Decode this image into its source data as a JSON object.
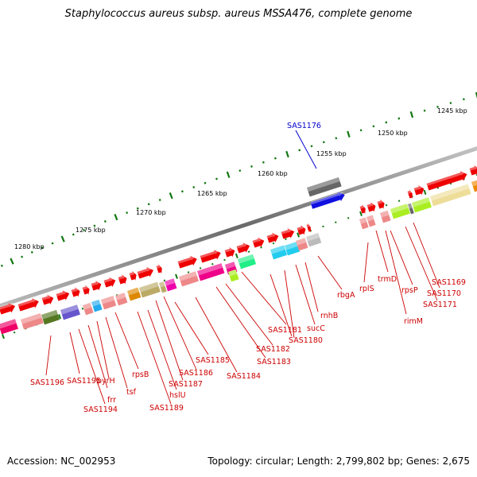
{
  "title": "Staphylococcus aureus subsp. aureus MSSA476, complete genome",
  "accession": "Accession: NC_002953",
  "topology": "Topology: circular; Length: 2,799,802 bp; Genes: 2,675",
  "scale_labels": [
    "1245 kbp",
    "1250 kbp",
    "1255 kbp",
    "1260 kbp",
    "1265 kbp",
    "1270 kbp",
    "1275 kbp",
    "1280 kbp"
  ],
  "selected_gene": "SAS1176",
  "gene_labels": [
    "SAS1196",
    "SAS1195",
    "SAS1194",
    "frr",
    "pyrH",
    "tsf",
    "rpsB",
    "SAS1189",
    "hslU",
    "SAS1187",
    "SAS1186",
    "SAS1185",
    "SAS1184",
    "SAS1183",
    "SAS1182",
    "SAS1181",
    "SAS1180",
    "sucC",
    "rnhB",
    "rbgA",
    "rplS",
    "trmD",
    "rimM",
    "rpsP",
    "SAS1171",
    "SAS1170",
    "SAS1169"
  ],
  "colors": {
    "forward_gene": "#ee0000",
    "selected_gene": "#1010e0",
    "label": "#cc0000",
    "selected_label": "#0000cc",
    "tick": "#117711",
    "backbone": "#777777"
  }
}
